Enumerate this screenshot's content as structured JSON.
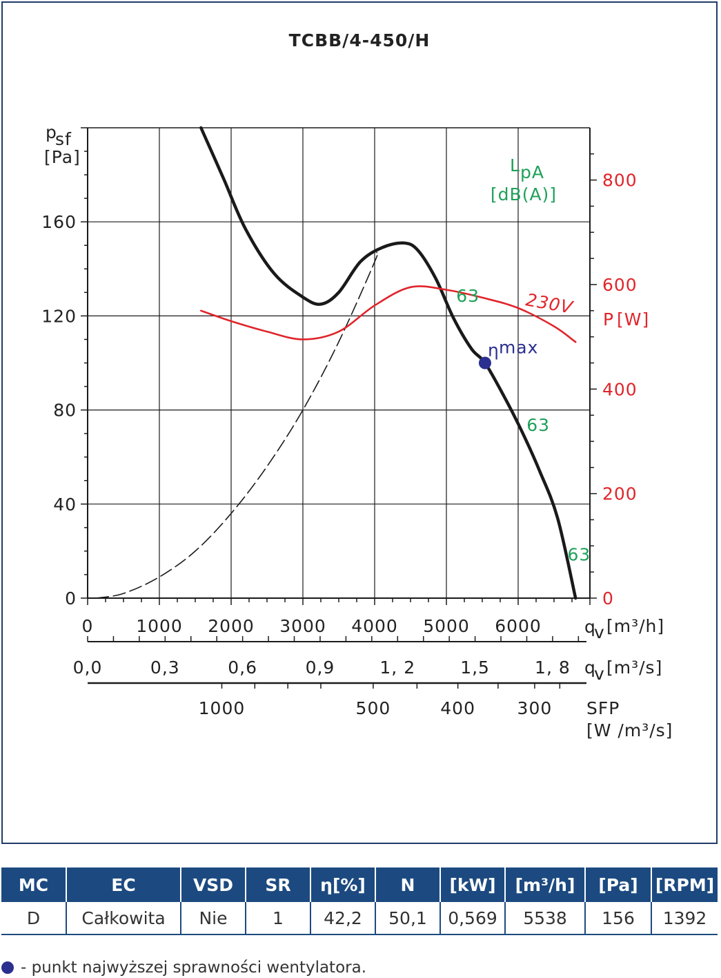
{
  "chart_data": {
    "type": "line",
    "title": "TCBB/4-450/H",
    "y_label": "p",
    "y_label_sub": "sf",
    "y_unit": "[Pa]",
    "y_range": [
      0,
      200
    ],
    "y_ticks": [
      "0",
      "40",
      "80",
      "120",
      "160"
    ],
    "y2_label": "P",
    "y2_unit": "[W]",
    "y2_range": [
      0,
      900
    ],
    "y2_ticks": [
      "0",
      "200",
      "400",
      "600",
      "800"
    ],
    "x_range_m3h": [
      0,
      7000
    ],
    "x_label": "q",
    "x_label_sub": "v",
    "x_unit_m3h": "[m³/h]",
    "x_ticks_m3h": [
      "0",
      "1000",
      "2000",
      "3000",
      "4000",
      "5000",
      "6000"
    ],
    "x_unit_m3s": "[m³/s]",
    "x_ticks_m3s": [
      {
        "label": "0,0",
        "value": 0.0
      },
      {
        "label": "0,3",
        "value": 0.3
      },
      {
        "label": "0,6",
        "value": 0.6
      },
      {
        "label": "0,9",
        "value": 0.9
      },
      {
        "label": "1, 2",
        "value": 1.2
      },
      {
        "label": "1,5",
        "value": 1.5
      },
      {
        "label": "1, 8",
        "value": 1.8
      }
    ],
    "sfp_label": "SFP",
    "sfp_unit": "[W /m³/s]",
    "sfp_ticks": [
      {
        "label": "1000",
        "x": 1870
      },
      {
        "label": "500",
        "x": 3980
      },
      {
        "label": "400",
        "x": 5160
      },
      {
        "label": "300",
        "x": 6230
      }
    ],
    "sound_label": "L",
    "sound_label_sub": "pA",
    "sound_unit": "[dB(A)]",
    "series": [
      {
        "name": "",
        "axis": "y",
        "color": "#1a1a1a",
        "x": [
          1580,
          1900,
          2200,
          2600,
          3000,
          3250,
          3500,
          3800,
          4100,
          4400,
          4600,
          4850,
          5100,
          5350,
          5538,
          5800,
          6050,
          6300,
          6550,
          6800
        ],
        "y": [
          200,
          178,
          157,
          138,
          128,
          125,
          130,
          143,
          149,
          151,
          148,
          136,
          119,
          106,
          100,
          86,
          71,
          54,
          34,
          0
        ]
      },
      {
        "name": "",
        "axis": "y",
        "style": "dashed",
        "color": "#1a1a1a",
        "x": [
          120,
          500,
          1000,
          1500,
          2000,
          2500,
          3000,
          3500,
          4000,
          4030
        ],
        "y": [
          0,
          2,
          9,
          20,
          36,
          56,
          80,
          109,
          143,
          147
        ]
      },
      {
        "name": "230V",
        "axis": "y2",
        "color": "#e0252b",
        "x": [
          1580,
          2000,
          2500,
          3000,
          3500,
          4000,
          4500,
          5000,
          5500,
          6000,
          6500,
          6800
        ],
        "y": [
          550,
          530,
          510,
          495,
          510,
          560,
          595,
          590,
          575,
          555,
          520,
          490
        ]
      }
    ],
    "points": [
      {
        "label": "η",
        "label_sub": "max",
        "x": 5538,
        "y": 100,
        "color": "#2b2f8f"
      }
    ],
    "annotations": [
      {
        "text": "63",
        "x": 5300,
        "y": 126
      },
      {
        "text": "63",
        "x": 6280,
        "y": 71
      },
      {
        "text": "63",
        "x": 6850,
        "y": 16
      }
    ]
  },
  "table": {
    "headers": [
      "MC",
      "EC",
      "VSD",
      "SR",
      "η[%]",
      "N",
      "[kW]",
      "[m³/h]",
      "[Pa]",
      "[RPM]"
    ],
    "row": [
      "D",
      "Całkowita",
      "Nie",
      "1",
      "42,2",
      "50,1",
      "0,569",
      "5538",
      "156",
      "1392"
    ]
  },
  "footnote": "- punkt najwyższej sprawności wentylatora."
}
